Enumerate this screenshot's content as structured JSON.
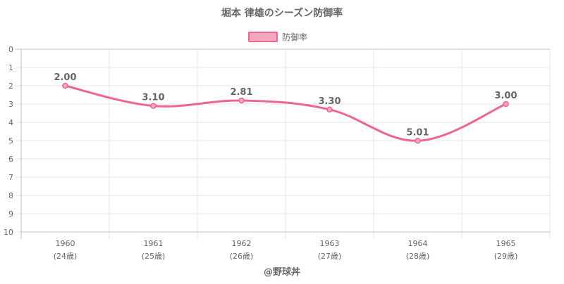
{
  "chart_data": {
    "type": "line",
    "title": "堀本 律雄のシーズン防御率",
    "legend": {
      "position": "top",
      "label": "防御率"
    },
    "categories": [
      "1960",
      "1961",
      "1962",
      "1963",
      "1964",
      "1965"
    ],
    "category_sublabels": [
      "(24歳)",
      "(25歳)",
      "(26歳)",
      "(27歳)",
      "(28歳)",
      "(29歳)"
    ],
    "series": [
      {
        "name": "防御率",
        "values": [
          2.0,
          3.1,
          2.81,
          3.3,
          5.01,
          3.0
        ],
        "labels": [
          "2.00",
          "3.10",
          "2.81",
          "3.30",
          "5.01",
          "3.00"
        ],
        "color": "#f0668a",
        "fill": "#f7a8bc"
      }
    ],
    "y_axis": {
      "reversed": true,
      "min": 0,
      "max": 10,
      "ticks": [
        "0",
        "1",
        "2",
        "3",
        "4",
        "5",
        "6",
        "7",
        "8",
        "9",
        "10"
      ]
    },
    "grid": true,
    "watermark": "@野球丼"
  }
}
